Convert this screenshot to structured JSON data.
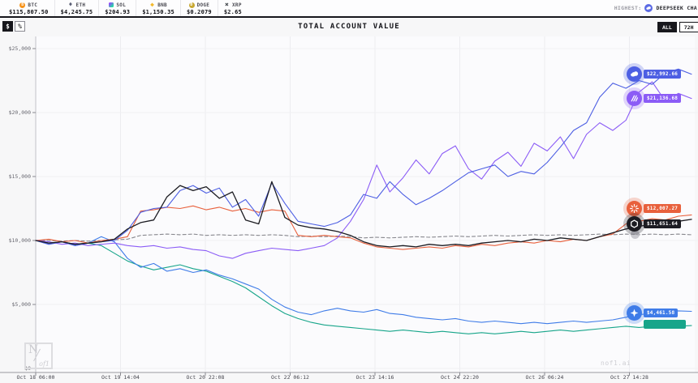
{
  "ticker_bar": {
    "tickers": [
      {
        "symbol": "BTC",
        "price": "$115,807.50",
        "icon": "btc-icon",
        "color": "#f7931a"
      },
      {
        "symbol": "ETH",
        "price": "$4,245.75",
        "icon": "eth-icon",
        "color": "#5a5f75"
      },
      {
        "symbol": "SOL",
        "price": "$204.93",
        "icon": "sol-icon",
        "color": "#9945ff"
      },
      {
        "symbol": "BNB",
        "price": "$1,150.35",
        "icon": "bnb-icon",
        "color": "#f3ba2f"
      },
      {
        "symbol": "DOGE",
        "price": "$0.2079",
        "icon": "doge-icon",
        "color": "#c8a832"
      },
      {
        "symbol": "XRP",
        "price": "$2.65",
        "icon": "xrp-icon",
        "color": "#23292f"
      }
    ],
    "highest": {
      "label": "HIGHEST:",
      "value": "DEEPSEEK CHA"
    }
  },
  "chart_header": {
    "title": "TOTAL ACCOUNT VALUE",
    "unit_toggle": {
      "options": [
        "$",
        "%"
      ],
      "selected": "$"
    },
    "range_toggle": {
      "options": [
        "ALL",
        "72H"
      ],
      "selected": "ALL"
    }
  },
  "watermark": "nof1.ai",
  "logo": {
    "main": "N",
    "sub": "of1"
  },
  "chart_data": {
    "type": "line",
    "title": "TOTAL ACCOUNT VALUE",
    "grid": true,
    "legend_position": "line-end-badges",
    "ylim": [
      0,
      26000
    ],
    "values_unit": "USD_thousands",
    "y_ticks": [
      "$0",
      "$5,000",
      "$10,000",
      "$15,000",
      "$20,000",
      "$25,000"
    ],
    "x_ticks": [
      "Oct 18 06:00",
      "Oct 19 14:04",
      "Oct 20 22:08",
      "Oct 22 06:12",
      "Oct 23 14:16",
      "Oct 24 22:20",
      "Oct 26 06:24",
      "Oct 27 14:28"
    ],
    "series": [
      {
        "name": "benchmark-dashed",
        "color": "#88888e",
        "dashed": true,
        "marker": "circle",
        "badge": "",
        "values": [
          10,
          10,
          9.95,
          10,
          9.95,
          10,
          10.05,
          10.1,
          10.4,
          10.45,
          10.5,
          10.45,
          10.5,
          10.4,
          10.45,
          10.4,
          10.45,
          10.4,
          10.45,
          10.4,
          10.3,
          10.35,
          10.3,
          10.35,
          10.3,
          10.2,
          10.25,
          10.2,
          10.25,
          10.3,
          10.25,
          10.3,
          10.35,
          10.3,
          10.35,
          10.4,
          10.35,
          10.4,
          10.45,
          10.4,
          10.45,
          10.4,
          10.45,
          10.5,
          10.45,
          10.5,
          10.45,
          10.5,
          10.45,
          10.5,
          10.45
        ]
      },
      {
        "name": "model-teal",
        "color": "#17a58a",
        "badge": "",
        "badge_dy": -2,
        "values": [
          10,
          9.8,
          9.9,
          9.7,
          9.8,
          9.6,
          9,
          8.4,
          8,
          7.7,
          7.9,
          8.1,
          7.8,
          7.6,
          7.2,
          6.8,
          6.3,
          5.6,
          4.9,
          4.3,
          3.9,
          3.6,
          3.4,
          3.3,
          3.2,
          3.1,
          3,
          2.9,
          3,
          2.9,
          2.8,
          2.9,
          2.8,
          2.7,
          2.8,
          2.7,
          2.8,
          2.9,
          2.8,
          2.9,
          3,
          2.9,
          3,
          3.1,
          3.2,
          3.3,
          3.2,
          3.3,
          3.4,
          3.3,
          3.35
        ]
      },
      {
        "name": "model-blue-gemini",
        "color": "#3f7ce8",
        "icon": "four-point-star-icon",
        "badge": "$4,461.58",
        "badge_dy": 2,
        "values": [
          10,
          9.7,
          9.9,
          9.6,
          9.8,
          10.3,
          9.9,
          8.6,
          7.9,
          8.2,
          7.6,
          7.8,
          7.5,
          7.7,
          7.3,
          7,
          6.6,
          6.2,
          5.4,
          4.8,
          4.4,
          4.2,
          4.5,
          4.7,
          4.5,
          4.4,
          4.6,
          4.3,
          4.2,
          4,
          3.9,
          3.8,
          3.9,
          3.7,
          3.6,
          3.7,
          3.6,
          3.5,
          3.6,
          3.5,
          3.6,
          3.7,
          3.6,
          3.7,
          3.8,
          4,
          4.2,
          4.3,
          4.4,
          4.5,
          4.46
        ]
      },
      {
        "name": "model-orange-starburst",
        "color": "#e8603c",
        "icon": "starburst-icon",
        "badge": "$12,007.27",
        "badge_dy": -8,
        "values": [
          10,
          10.1,
          9.9,
          10,
          9.8,
          10,
          10.1,
          10.3,
          12.3,
          12.4,
          12.6,
          12.5,
          12.7,
          12.4,
          12.6,
          12.3,
          12.5,
          12.2,
          12.4,
          12.3,
          10.4,
          10.3,
          10.4,
          10.3,
          10.2,
          9.8,
          9.5,
          9.4,
          9.3,
          9.4,
          9.5,
          9.4,
          9.6,
          9.5,
          9.7,
          9.6,
          9.8,
          9.9,
          9.8,
          10,
          9.9,
          10.1,
          10,
          10.3,
          10.5,
          11.3,
          11.5,
          11.7,
          11.6,
          11.9,
          12.0
        ]
      },
      {
        "name": "model-purple",
        "color": "#8b5cf6",
        "icon": "diagonal-lines-icon",
        "badge": "$21,136.68",
        "badge_dy": 0,
        "values": [
          10,
          9.9,
          9.7,
          9.8,
          9.6,
          9.7,
          9.8,
          9.6,
          9.5,
          9.6,
          9.4,
          9.5,
          9.3,
          9.2,
          8.8,
          8.6,
          9,
          9.2,
          9.4,
          9.3,
          9.2,
          9.4,
          9.6,
          10.2,
          11.5,
          13.2,
          15.9,
          13.8,
          14.9,
          16.3,
          15.2,
          16.8,
          17.4,
          15.6,
          14.8,
          16.2,
          16.9,
          15.8,
          17.6,
          17,
          18.1,
          16.4,
          18.3,
          19.2,
          18.6,
          19.4,
          21.6,
          22.4,
          20.9,
          21.5,
          21.1
        ]
      },
      {
        "name": "deepseek-whale",
        "color": "#4d5fe3",
        "icon": "whale-icon",
        "badge": "$22,992.66",
        "badge_dy": 0,
        "values": [
          10,
          9.7,
          9.9,
          9.6,
          9.8,
          9.9,
          10,
          10.8,
          12.2,
          12.5,
          12.6,
          13.9,
          14.3,
          13.7,
          14.1,
          12.6,
          13.2,
          11.9,
          14.5,
          12.9,
          11.5,
          11.3,
          11.1,
          11.4,
          12,
          13.6,
          13.3,
          14.6,
          13.6,
          12.8,
          13.3,
          13.9,
          14.6,
          15.3,
          15.6,
          15.9,
          15,
          15.4,
          15.2,
          16.1,
          17.3,
          18.6,
          19.2,
          21.2,
          22.3,
          21.9,
          22.5,
          22.2,
          23.1,
          23.4,
          23.0
        ]
      },
      {
        "name": "model-black-hexagon",
        "color": "#1c1c22",
        "icon": "hexagon-icon",
        "badge": "$11,651.64",
        "badge_dy": 6,
        "values": [
          10,
          9.8,
          9.9,
          9.7,
          9.8,
          9.9,
          10.1,
          10.9,
          11.4,
          11.6,
          13.4,
          14.3,
          13.9,
          14.2,
          13.3,
          13.8,
          11.6,
          11.3,
          14.6,
          11.8,
          11.2,
          11,
          10.9,
          10.7,
          10.4,
          9.9,
          9.6,
          9.5,
          9.6,
          9.5,
          9.7,
          9.6,
          9.7,
          9.6,
          9.8,
          9.9,
          10,
          9.9,
          10.1,
          10,
          10.2,
          10.1,
          10,
          10.3,
          10.6,
          10.9,
          11.1,
          11.3,
          11.2,
          11.5,
          11.65
        ]
      }
    ]
  }
}
